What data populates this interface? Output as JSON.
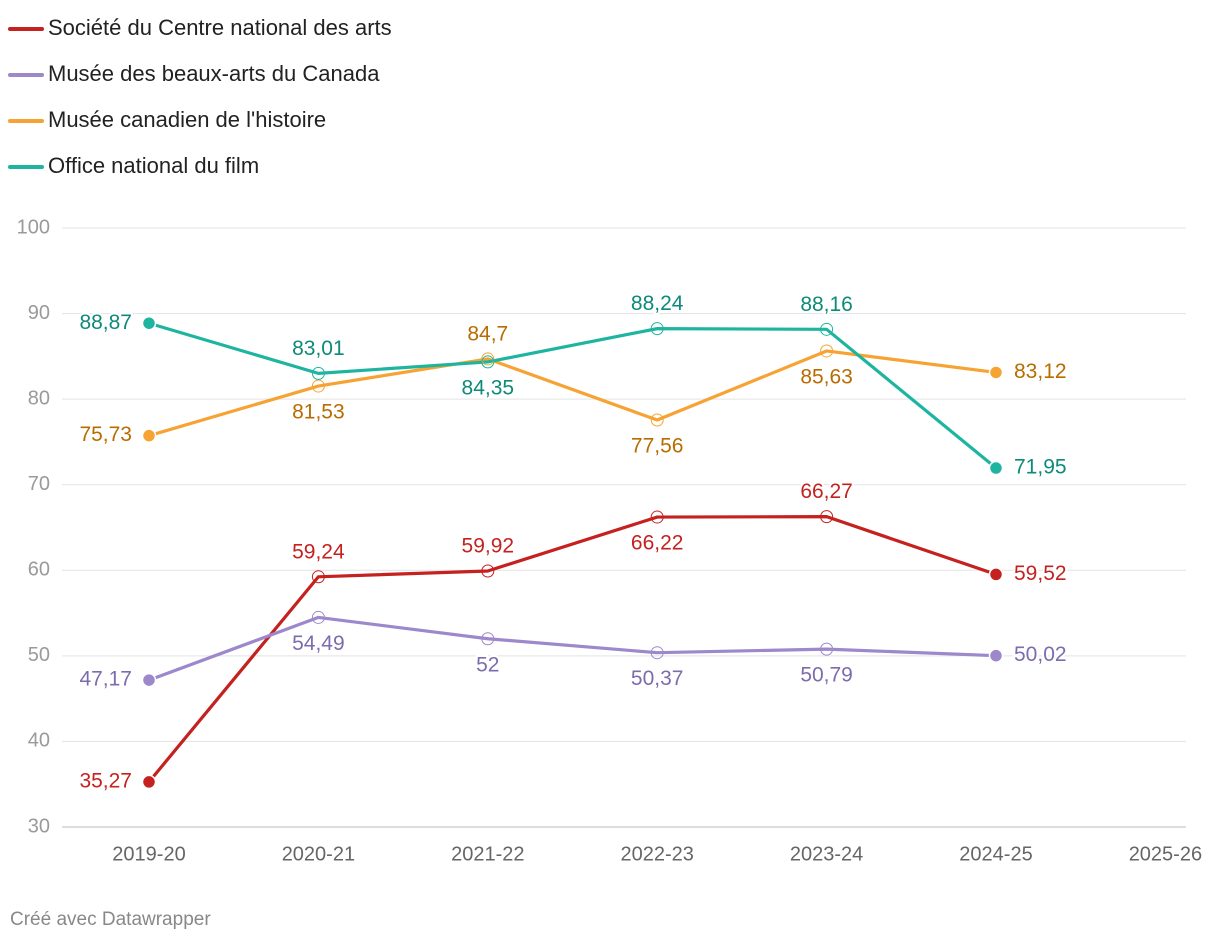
{
  "chart_data": {
    "type": "line",
    "categories": [
      "2019-20",
      "2020-21",
      "2021-22",
      "2022-23",
      "2023-24",
      "2024-25",
      "2025-26"
    ],
    "series": [
      {
        "name": "Société du Centre national des arts",
        "color": "#c4211f",
        "label_color": "#c4211f",
        "values": [
          35.27,
          59.24,
          59.92,
          66.22,
          66.27,
          59.52,
          null
        ],
        "value_labels": [
          "35,27",
          "59,24",
          "59,92",
          "66,22",
          "66,27",
          "59,52",
          null
        ]
      },
      {
        "name": "Musée des beaux-arts du Canada",
        "color": "#9c88cb",
        "label_color": "#7d6cac",
        "values": [
          47.17,
          54.49,
          52,
          50.37,
          50.79,
          50.02,
          null
        ],
        "value_labels": [
          "47,17",
          "54,49",
          "52",
          "50,37",
          "50,79",
          "50,02",
          null
        ]
      },
      {
        "name": "Musée canadien de l'histoire",
        "color": "#f6a333",
        "label_color": "#b86c00",
        "values": [
          75.73,
          81.53,
          84.7,
          77.56,
          85.63,
          83.12,
          null
        ],
        "value_labels": [
          "75,73",
          "81,53",
          "84,7",
          "77,56",
          "85,63",
          "83,12",
          null
        ]
      },
      {
        "name": "Office national du film",
        "color": "#1eb5a0",
        "label_color": "#0d8a78",
        "values": [
          88.87,
          83.01,
          84.35,
          88.24,
          88.16,
          71.95,
          null
        ],
        "value_labels": [
          "88,87",
          "83,01",
          "84,35",
          "88,24",
          "88,16",
          "71,95",
          null
        ]
      }
    ],
    "ylim": [
      30,
      100
    ],
    "yticks": [
      30,
      40,
      50,
      60,
      70,
      80,
      90,
      100
    ],
    "grid": true,
    "legend": "top-left",
    "footer": "Créé avec Datawrapper"
  }
}
